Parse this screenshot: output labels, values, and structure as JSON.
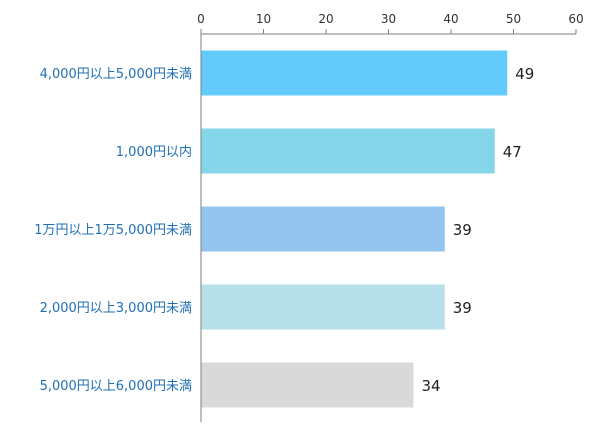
{
  "chart_data": {
    "type": "bar",
    "orientation": "horizontal",
    "title": "",
    "xlabel": "",
    "ylabel": "",
    "xlim": [
      0,
      60
    ],
    "ticks": [
      0,
      10,
      20,
      30,
      40,
      50,
      60
    ],
    "axis_position": "top",
    "grid": false,
    "categories": [
      "4,000円以上5,000円未満",
      "1,000円以内",
      "1万円以上1万5,000円未満",
      "2,000円以上3,000円未満",
      "5,000円以上6,000円未満"
    ],
    "values": [
      49,
      47,
      39,
      39,
      34
    ],
    "colors": [
      "#62cbfb",
      "#86d6ea",
      "#93c5ee",
      "#b7dfea",
      "#d9d9d9"
    ],
    "axis_color": "#7f7f7f"
  }
}
